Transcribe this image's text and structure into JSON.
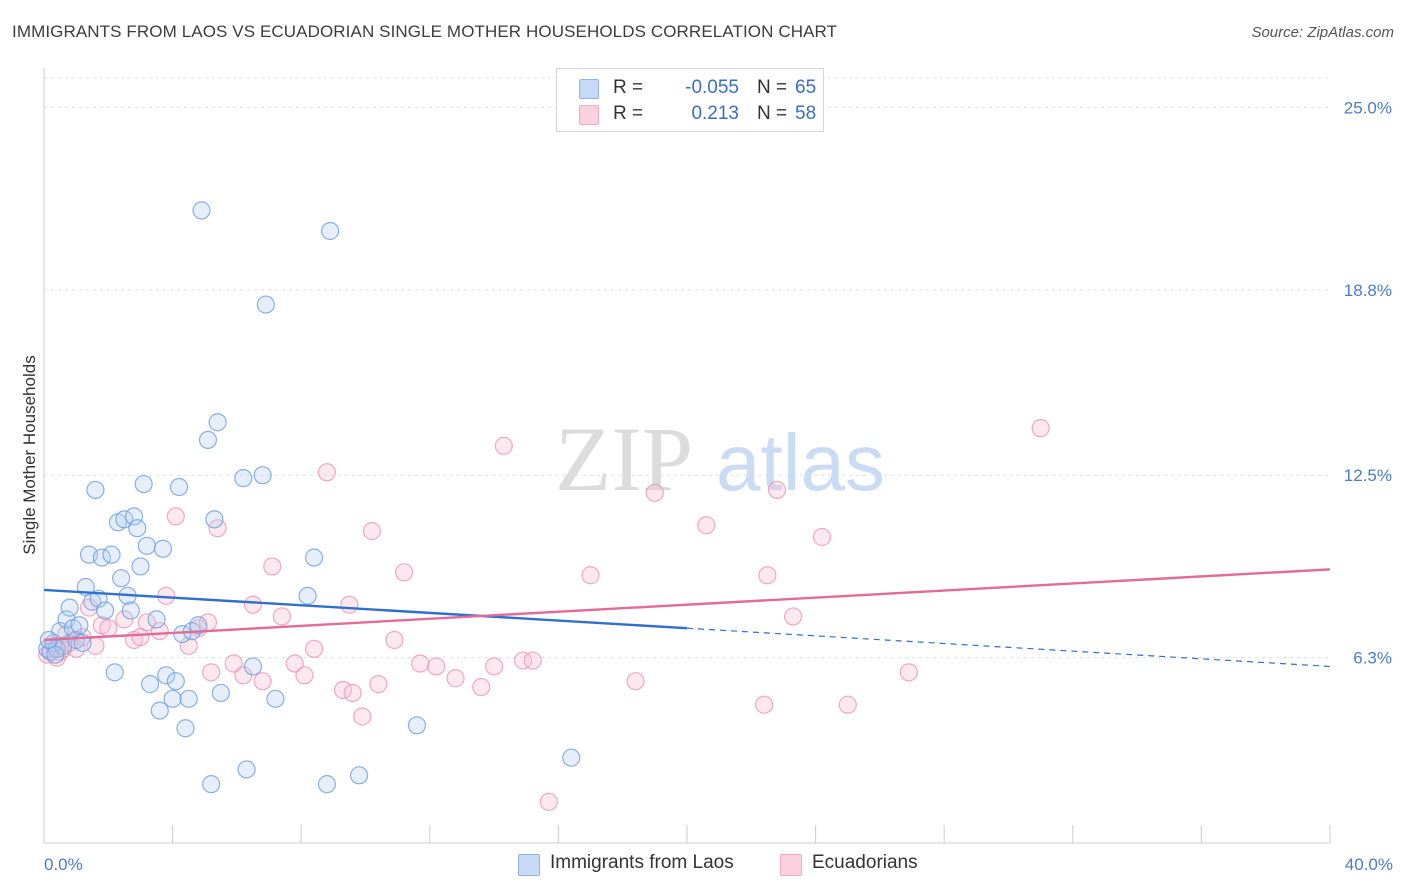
{
  "title": "IMMIGRANTS FROM LAOS VS ECUADORIAN SINGLE MOTHER HOUSEHOLDS CORRELATION CHART",
  "source": "Source: ZipAtlas.com",
  "watermark": {
    "zip": "ZIP",
    "atlas": "atlas"
  },
  "legend": {
    "series1": {
      "r_label": "R =",
      "r_value": "-0.055",
      "n_label": "N =",
      "n_value": "65"
    },
    "series2": {
      "r_label": "R =",
      "r_value": "0.213",
      "n_label": "N =",
      "n_value": "58"
    }
  },
  "bottom_legend": {
    "series1": "Immigrants from Laos",
    "series2": "Ecuadorians"
  },
  "chart_data": {
    "type": "scatter",
    "title": "IMMIGRANTS FROM LAOS VS ECUADORIAN SINGLE MOTHER HOUSEHOLDS CORRELATION CHART",
    "xlabel": "",
    "ylabel": "Single Mother Households",
    "xlim": [
      0,
      40
    ],
    "ylim": [
      0,
      26
    ],
    "x_ticks": [
      "0.0%",
      "40.0%"
    ],
    "y_ticks": [
      {
        "value": 6.3,
        "label": "6.3%"
      },
      {
        "value": 12.5,
        "label": "12.5%"
      },
      {
        "value": 18.8,
        "label": "18.8%"
      },
      {
        "value": 25.0,
        "label": "25.0%"
      }
    ],
    "grid": true,
    "legend_position": "top-center",
    "series": [
      {
        "name": "Immigrants from Laos",
        "color": "#8fb4e8",
        "line_color": "#2f6fd0",
        "trend": {
          "solid": [
            [
              0,
              8.6
            ],
            [
              20,
              7.3
            ]
          ],
          "dashed": [
            [
              20,
              7.3
            ],
            [
              40,
              6.0
            ]
          ]
        },
        "points": [
          [
            0.1,
            6.6
          ],
          [
            0.2,
            6.5
          ],
          [
            0.3,
            6.8
          ],
          [
            0.4,
            6.6
          ],
          [
            0.5,
            7.2
          ],
          [
            0.6,
            6.7
          ],
          [
            0.7,
            7.6
          ],
          [
            0.8,
            8.0
          ],
          [
            0.9,
            7.3
          ],
          [
            1.0,
            6.9
          ],
          [
            1.1,
            7.4
          ],
          [
            1.2,
            6.8
          ],
          [
            1.3,
            8.7
          ],
          [
            1.4,
            9.8
          ],
          [
            1.5,
            8.2
          ],
          [
            1.6,
            12.0
          ],
          [
            1.7,
            8.3
          ],
          [
            1.8,
            9.7
          ],
          [
            1.9,
            7.9
          ],
          [
            2.1,
            9.8
          ],
          [
            2.2,
            5.8
          ],
          [
            2.3,
            10.9
          ],
          [
            2.4,
            9.0
          ],
          [
            2.5,
            11.0
          ],
          [
            2.6,
            8.4
          ],
          [
            2.7,
            7.9
          ],
          [
            2.8,
            11.1
          ],
          [
            2.9,
            10.7
          ],
          [
            3.0,
            9.4
          ],
          [
            3.1,
            12.2
          ],
          [
            3.2,
            10.1
          ],
          [
            3.3,
            5.4
          ],
          [
            3.5,
            7.6
          ],
          [
            3.6,
            4.5
          ],
          [
            3.7,
            10.0
          ],
          [
            3.8,
            5.7
          ],
          [
            4.0,
            4.9
          ],
          [
            4.1,
            5.5
          ],
          [
            4.2,
            12.1
          ],
          [
            4.3,
            7.1
          ],
          [
            4.4,
            3.9
          ],
          [
            4.5,
            4.9
          ],
          [
            4.6,
            7.2
          ],
          [
            4.8,
            7.4
          ],
          [
            4.9,
            21.5
          ],
          [
            5.1,
            13.7
          ],
          [
            5.2,
            2.0
          ],
          [
            5.3,
            11.0
          ],
          [
            5.4,
            14.3
          ],
          [
            5.5,
            5.1
          ],
          [
            6.2,
            12.4
          ],
          [
            6.3,
            2.5
          ],
          [
            6.5,
            6.0
          ],
          [
            6.8,
            12.5
          ],
          [
            6.9,
            18.3
          ],
          [
            7.2,
            4.9
          ],
          [
            8.2,
            8.4
          ],
          [
            8.4,
            9.7
          ],
          [
            8.8,
            2.0
          ],
          [
            8.9,
            20.8
          ],
          [
            9.8,
            2.3
          ],
          [
            11.6,
            4.0
          ],
          [
            16.4,
            2.9
          ],
          [
            0.15,
            6.9
          ],
          [
            0.35,
            6.4
          ]
        ]
      },
      {
        "name": "Ecuadorians",
        "color": "#f3a8c3",
        "line_color": "#e46a98",
        "trend": {
          "solid": [
            [
              0,
              6.9
            ],
            [
              40,
              9.3
            ]
          ]
        },
        "points": [
          [
            0.1,
            6.4
          ],
          [
            0.2,
            6.5
          ],
          [
            0.3,
            6.7
          ],
          [
            0.4,
            6.3
          ],
          [
            0.5,
            6.5
          ],
          [
            0.6,
            6.6
          ],
          [
            0.7,
            7.1
          ],
          [
            0.8,
            6.8
          ],
          [
            1.0,
            6.6
          ],
          [
            1.2,
            7.0
          ],
          [
            1.4,
            8.0
          ],
          [
            1.6,
            6.7
          ],
          [
            1.8,
            7.4
          ],
          [
            2.0,
            7.3
          ],
          [
            2.5,
            7.6
          ],
          [
            2.8,
            6.9
          ],
          [
            3.0,
            7.0
          ],
          [
            3.2,
            7.5
          ],
          [
            3.6,
            7.2
          ],
          [
            3.8,
            8.4
          ],
          [
            4.1,
            11.1
          ],
          [
            4.5,
            6.7
          ],
          [
            4.8,
            7.3
          ],
          [
            5.1,
            7.5
          ],
          [
            5.2,
            5.8
          ],
          [
            5.4,
            10.7
          ],
          [
            5.9,
            6.1
          ],
          [
            6.2,
            5.7
          ],
          [
            6.5,
            8.1
          ],
          [
            6.8,
            5.5
          ],
          [
            7.1,
            9.4
          ],
          [
            7.4,
            7.7
          ],
          [
            7.8,
            6.1
          ],
          [
            8.1,
            5.7
          ],
          [
            8.4,
            6.6
          ],
          [
            8.8,
            12.6
          ],
          [
            9.3,
            5.2
          ],
          [
            9.5,
            8.1
          ],
          [
            9.6,
            5.1
          ],
          [
            9.9,
            4.3
          ],
          [
            10.2,
            10.6
          ],
          [
            10.4,
            5.4
          ],
          [
            10.9,
            6.9
          ],
          [
            11.2,
            9.2
          ],
          [
            11.7,
            6.1
          ],
          [
            12.2,
            6.0
          ],
          [
            12.8,
            5.6
          ],
          [
            13.6,
            5.3
          ],
          [
            14.0,
            6.0
          ],
          [
            14.3,
            13.5
          ],
          [
            14.9,
            6.2
          ],
          [
            15.2,
            6.2
          ],
          [
            15.7,
            1.4
          ],
          [
            17.0,
            9.1
          ],
          [
            18.4,
            5.5
          ],
          [
            19.0,
            11.9
          ],
          [
            20.6,
            10.8
          ],
          [
            31.0,
            14.1
          ]
        ]
      }
    ],
    "extra_points_ecuadorians": [
      [
        22.5,
        9.1
      ],
      [
        23.3,
        7.7
      ],
      [
        22.4,
        4.7
      ],
      [
        24.2,
        10.4
      ],
      [
        25.0,
        4.7
      ],
      [
        26.9,
        5.8
      ],
      [
        22.8,
        12.0
      ]
    ]
  }
}
